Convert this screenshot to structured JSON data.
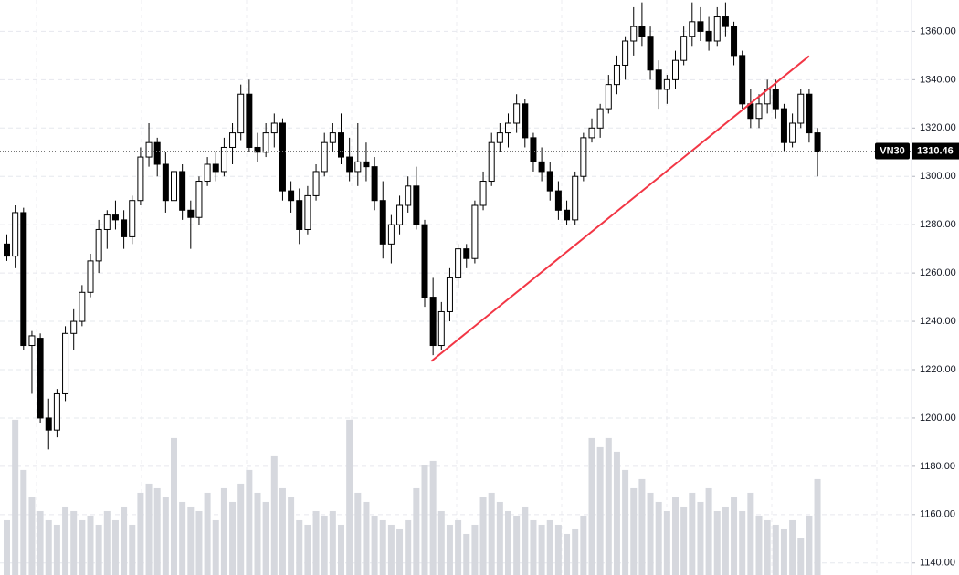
{
  "chart_data": {
    "type": "candlestick",
    "symbol": "VN30",
    "last_price": 1310.46,
    "open": [
      1272,
      1267,
      1285,
      1230,
      1233,
      1200,
      1195,
      1210,
      1235,
      1240,
      1252,
      1265,
      1278,
      1284,
      1282,
      1275,
      1290,
      1308,
      1314,
      1305,
      1290,
      1302,
      1286,
      1283,
      1298,
      1305,
      1302,
      1312,
      1318,
      1334,
      1312,
      1310,
      1318,
      1322,
      1294,
      1290,
      1278,
      1292,
      1302,
      1314,
      1318,
      1308,
      1302,
      1306,
      1304,
      1290,
      1272,
      1280,
      1288,
      1296,
      1280,
      1250,
      1230,
      1244,
      1258,
      1270,
      1266,
      1288,
      1298,
      1314,
      1318,
      1322,
      1330,
      1316,
      1306,
      1302,
      1294,
      1286,
      1282,
      1300,
      1316,
      1320,
      1328,
      1338,
      1346,
      1356,
      1362,
      1358,
      1344,
      1336,
      1340,
      1348,
      1358,
      1364,
      1360,
      1356,
      1366,
      1362,
      1350,
      1330,
      1324,
      1330,
      1336,
      1328,
      1314,
      1322,
      1334,
      1318
    ],
    "high": [
      1276,
      1288,
      1287,
      1236,
      1235,
      1208,
      1212,
      1238,
      1245,
      1255,
      1268,
      1282,
      1286,
      1290,
      1286,
      1292,
      1312,
      1322,
      1316,
      1310,
      1306,
      1305,
      1290,
      1300,
      1308,
      1310,
      1316,
      1322,
      1338,
      1340,
      1318,
      1322,
      1326,
      1324,
      1298,
      1295,
      1296,
      1305,
      1318,
      1322,
      1326,
      1316,
      1322,
      1314,
      1308,
      1298,
      1284,
      1292,
      1300,
      1304,
      1282,
      1258,
      1248,
      1262,
      1272,
      1272,
      1290,
      1302,
      1318,
      1322,
      1326,
      1334,
      1332,
      1318,
      1312,
      1306,
      1298,
      1290,
      1302,
      1318,
      1324,
      1330,
      1342,
      1350,
      1358,
      1370,
      1372,
      1362,
      1348,
      1342,
      1352,
      1362,
      1372,
      1370,
      1366,
      1370,
      1372,
      1364,
      1352,
      1336,
      1334,
      1340,
      1340,
      1330,
      1326,
      1336,
      1336,
      1320
    ],
    "low": [
      1265,
      1262,
      1228,
      1210,
      1198,
      1187,
      1192,
      1207,
      1228,
      1238,
      1250,
      1260,
      1270,
      1278,
      1270,
      1272,
      1288,
      1304,
      1300,
      1285,
      1282,
      1282,
      1270,
      1280,
      1296,
      1298,
      1300,
      1305,
      1315,
      1310,
      1306,
      1308,
      1312,
      1290,
      1285,
      1272,
      1276,
      1290,
      1300,
      1310,
      1305,
      1298,
      1296,
      1298,
      1286,
      1266,
      1264,
      1276,
      1285,
      1278,
      1246,
      1226,
      1228,
      1240,
      1254,
      1262,
      1264,
      1286,
      1296,
      1310,
      1312,
      1318,
      1312,
      1302,
      1298,
      1290,
      1282,
      1280,
      1280,
      1298,
      1314,
      1316,
      1326,
      1334,
      1340,
      1350,
      1354,
      1340,
      1328,
      1330,
      1336,
      1346,
      1354,
      1356,
      1352,
      1354,
      1358,
      1346,
      1328,
      1320,
      1320,
      1326,
      1324,
      1310,
      1312,
      1320,
      1314,
      1300
    ],
    "close": [
      1267,
      1285,
      1230,
      1234,
      1200,
      1195,
      1210,
      1235,
      1240,
      1252,
      1265,
      1278,
      1284,
      1282,
      1275,
      1290,
      1308,
      1314,
      1305,
      1290,
      1302,
      1286,
      1283,
      1298,
      1305,
      1302,
      1312,
      1318,
      1334,
      1312,
      1310,
      1318,
      1322,
      1294,
      1290,
      1278,
      1292,
      1302,
      1314,
      1318,
      1308,
      1302,
      1306,
      1304,
      1290,
      1272,
      1280,
      1288,
      1296,
      1280,
      1250,
      1230,
      1244,
      1258,
      1270,
      1266,
      1288,
      1298,
      1314,
      1318,
      1322,
      1330,
      1316,
      1306,
      1302,
      1294,
      1286,
      1282,
      1300,
      1316,
      1320,
      1328,
      1338,
      1346,
      1356,
      1362,
      1358,
      1344,
      1336,
      1340,
      1348,
      1358,
      1364,
      1360,
      1356,
      1366,
      1362,
      1350,
      1330,
      1324,
      1330,
      1336,
      1328,
      1314,
      1322,
      1334,
      1318,
      1310.46
    ],
    "volume": [
      60,
      170,
      115,
      85,
      70,
      60,
      55,
      75,
      70,
      60,
      65,
      55,
      70,
      60,
      75,
      55,
      90,
      100,
      95,
      85,
      150,
      80,
      75,
      70,
      90,
      60,
      95,
      80,
      100,
      115,
      90,
      80,
      130,
      95,
      85,
      60,
      55,
      70,
      65,
      70,
      55,
      170,
      90,
      80,
      65,
      60,
      55,
      50,
      60,
      95,
      120,
      125,
      70,
      55,
      60,
      45,
      55,
      85,
      90,
      80,
      70,
      65,
      75,
      60,
      55,
      60,
      55,
      45,
      50,
      65,
      150,
      140,
      150,
      135,
      115,
      95,
      105,
      90,
      80,
      70,
      85,
      75,
      90,
      80,
      95,
      70,
      75,
      85,
      70,
      90,
      65,
      60,
      55,
      50,
      60,
      40,
      65,
      105
    ],
    "ylim": [
      1135,
      1373
    ],
    "yticks": [
      {
        "value": 1140,
        "label": "1140.00"
      },
      {
        "value": 1160,
        "label": "1160.00"
      },
      {
        "value": 1180,
        "label": "1180.00"
      },
      {
        "value": 1200,
        "label": "1200.00"
      },
      {
        "value": 1220,
        "label": "1220.00"
      },
      {
        "value": 1240,
        "label": "1240.00"
      },
      {
        "value": 1260,
        "label": "1260.00"
      },
      {
        "value": 1280,
        "label": "1280.00"
      },
      {
        "value": 1300,
        "label": "1300.00"
      },
      {
        "value": 1320,
        "label": "1320.00"
      },
      {
        "value": 1340,
        "label": "1340.00"
      },
      {
        "value": 1360,
        "label": "1360.00"
      }
    ],
    "grid": true,
    "trendline": {
      "color": "#f23645",
      "x": [
        50.8,
        96
      ],
      "y": [
        1223.5,
        1349.8
      ]
    }
  }
}
